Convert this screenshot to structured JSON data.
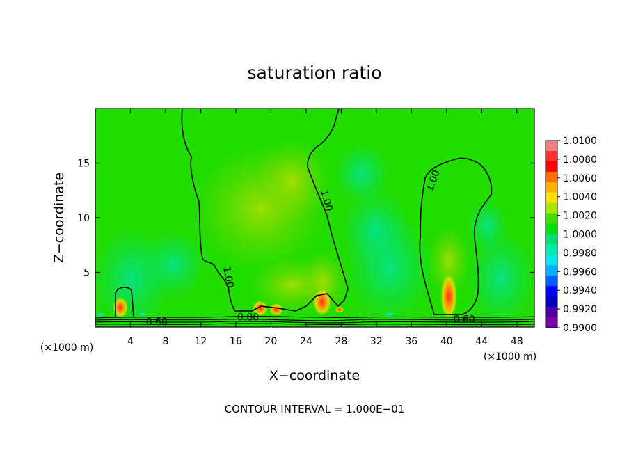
{
  "chart_data": {
    "type": "heatmap",
    "title": "saturation ratio",
    "xlabel": "X−coordinate",
    "ylabel": "Z−coordinate",
    "x_units": "(×1000 m)",
    "z_units": "(×1000 m)",
    "xlim": [
      0,
      50
    ],
    "ylim": [
      0,
      20
    ],
    "x_ticks": [
      4,
      8,
      12,
      16,
      20,
      24,
      28,
      32,
      36,
      40,
      44,
      48
    ],
    "y_ticks": [
      5,
      10,
      15
    ],
    "footer": "CONTOUR INTERVAL = 1.000E−01",
    "contour_interval": 0.1,
    "contour_labels": [
      {
        "text": "1.00",
        "x": 14.8,
        "z": 4.5
      },
      {
        "text": "1.00",
        "x": 26.0,
        "z": 11.5
      },
      {
        "text": "1.00",
        "x": 38.8,
        "z": 13.3
      },
      {
        "text": "0.60",
        "x": 7.0,
        "z": 0.2
      },
      {
        "text": "0.80",
        "x": 17.4,
        "z": 0.6
      },
      {
        "text": "0.60",
        "x": 42.0,
        "z": 0.4
      }
    ],
    "colorbar": {
      "labels": [
        "1.0100",
        "1.0080",
        "1.0060",
        "1.0040",
        "1.0020",
        "1.0000",
        "0.9980",
        "0.9960",
        "0.9940",
        "0.9920",
        "0.9900"
      ],
      "colors": [
        "#f08080",
        "#ff3030",
        "#ff0000",
        "#ff7000",
        "#ffb000",
        "#ffdd00",
        "#a8e600",
        "#40dd00",
        "#00e000",
        "#00e070",
        "#00eab0",
        "#00e8e8",
        "#00b0ff",
        "#0060ff",
        "#0000ff",
        "#0000c0",
        "#50009a",
        "#7a00aa"
      ]
    }
  }
}
